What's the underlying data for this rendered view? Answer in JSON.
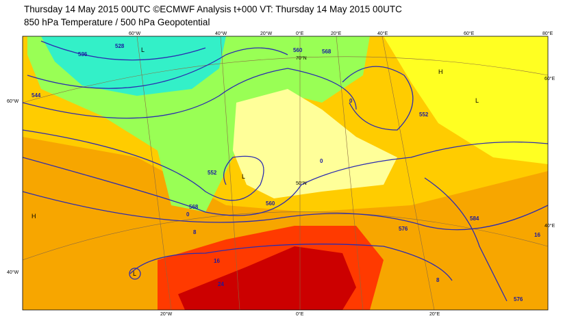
{
  "header": {
    "title": "Thursday 14 May 2015 00UTC ©ECMWF Analysis t+000 VT: Thursday 14 May 2015 00UTC",
    "subtitle": "850 hPa Temperature / 500 hPa Geopotential"
  },
  "graticule_labels": {
    "top": [
      "60°W",
      "40°W",
      "20°W",
      "0°E",
      "20°E",
      "40°E",
      "60°E",
      "80°E"
    ],
    "left": [
      "60°W",
      "40°W"
    ],
    "right": [
      "60°E",
      "40°E"
    ],
    "bottom": [
      "20°W",
      "0°E",
      "20°E"
    ],
    "latitude": [
      "70°N",
      "50°N"
    ]
  },
  "contour_labels": [
    "528",
    "536",
    "544",
    "552",
    "560",
    "568",
    "576",
    "584",
    "552",
    "560",
    "568",
    "576",
    "0",
    "0",
    "0",
    "8",
    "16",
    "24",
    "8",
    "16"
  ],
  "pressure_centers": [
    "L",
    "L",
    "L",
    "H",
    "H",
    "L"
  ]
}
